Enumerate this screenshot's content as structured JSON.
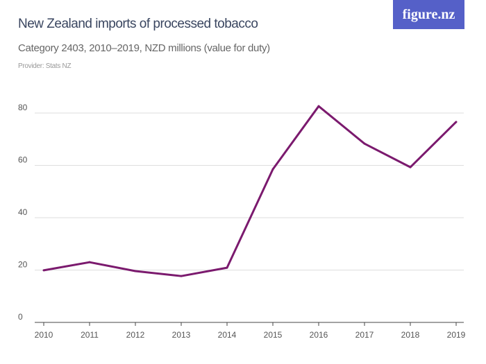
{
  "header": {
    "title": "New Zealand imports of processed tobacco",
    "subtitle": "Category 2403, 2010–2019, NZD millions (value for duty)",
    "provider": "Provider: Stats NZ",
    "logo": "figure.nz"
  },
  "chart_data": {
    "type": "line",
    "title": "New Zealand imports of processed tobacco",
    "subtitle": "Category 2403, 2010–2019, NZD millions (value for duty)",
    "x": [
      "2010",
      "2011",
      "2012",
      "2013",
      "2014",
      "2015",
      "2016",
      "2017",
      "2018",
      "2019"
    ],
    "series": [
      {
        "values": [
          19.9,
          23.0,
          19.6,
          17.7,
          20.9,
          58.5,
          82.6,
          68.3,
          59.3,
          76.6
        ],
        "color": "#7b1a6e"
      }
    ],
    "yticks": [
      0,
      20,
      40,
      60,
      80
    ],
    "ylim": [
      0,
      80
    ],
    "grid": true,
    "xlabel": "",
    "ylabel": ""
  }
}
